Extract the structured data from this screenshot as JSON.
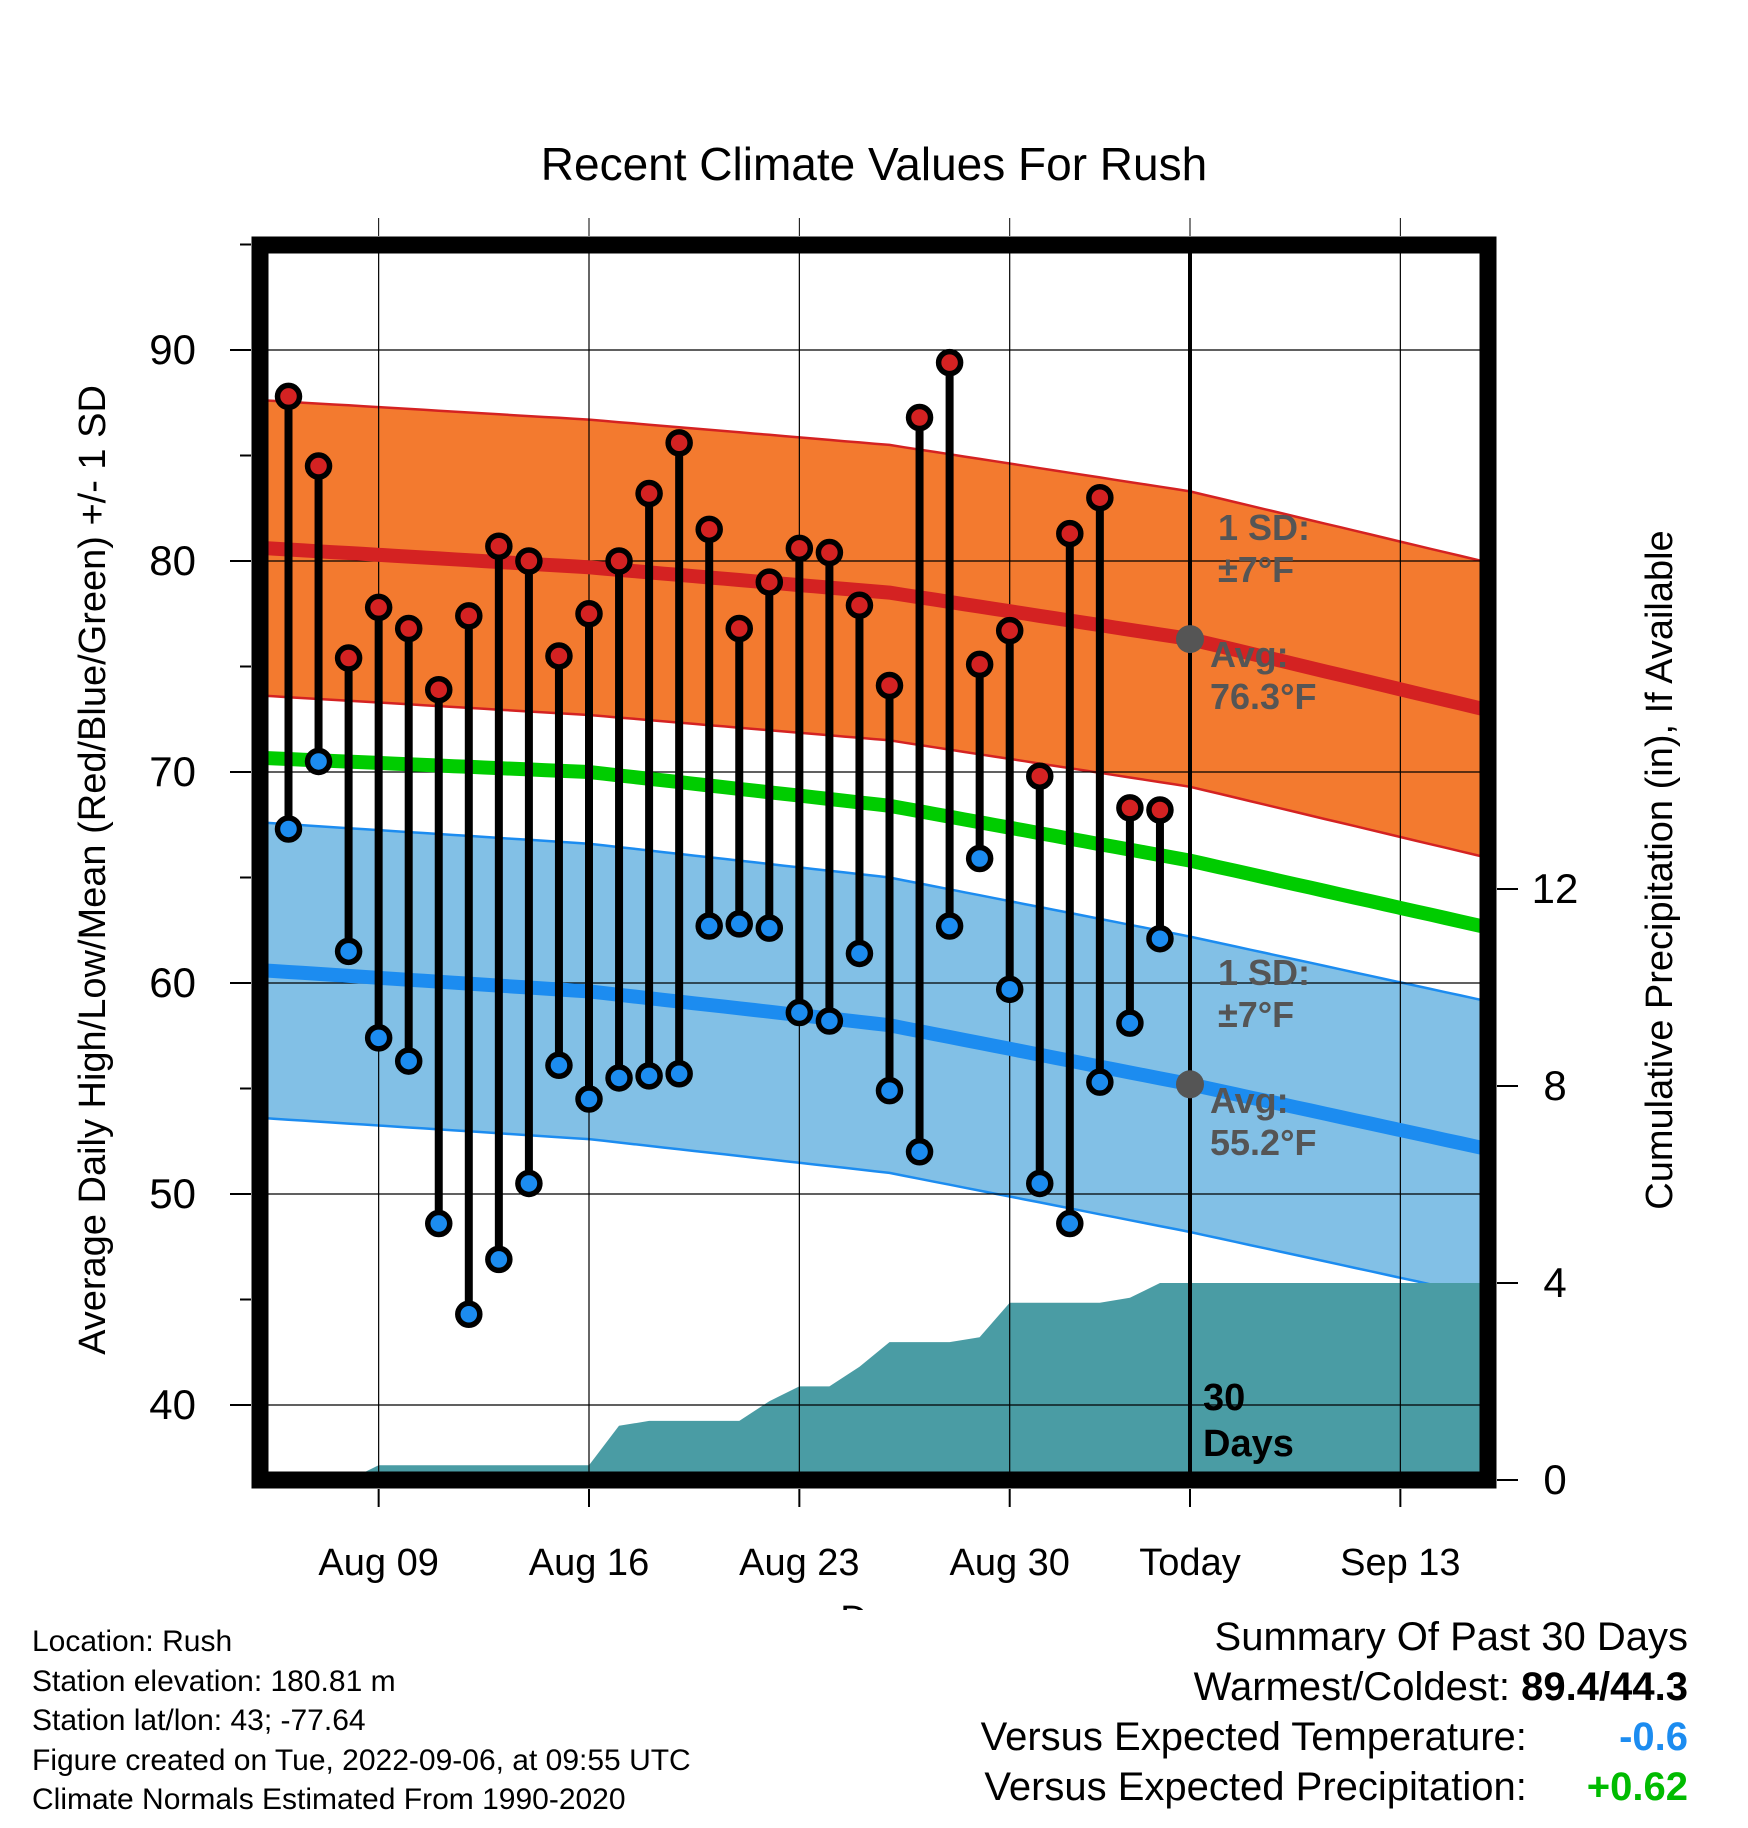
{
  "chart_data": {
    "type": "line",
    "title": "Recent Climate Values For Rush",
    "xlabel": "Day",
    "ylabel": "Average Daily High/Low/Mean (Red/Blue/Green) +/- 1 SD",
    "y2label": "Cumulative Precipitation (in), If Available",
    "ylim": [
      36.5,
      95.5
    ],
    "y2lim": [
      0,
      20
    ],
    "y_ticks": [
      40,
      50,
      60,
      70,
      80,
      90
    ],
    "y2_ticks": [
      0,
      4,
      8,
      12
    ],
    "x_tick_labels": [
      "Aug 09",
      "Aug 16",
      "Aug 23",
      "Aug 30",
      "Today",
      "Sep 13"
    ],
    "x_tick_days": [
      -27,
      -20,
      -13,
      -6,
      0,
      7
    ],
    "today_label": "30 Days",
    "grid": true,
    "daily": {
      "days": [
        -30,
        -29,
        -28,
        -27,
        -26,
        -25,
        -24,
        -23,
        -22,
        -21,
        -20,
        -19,
        -18,
        -17,
        -16,
        -15,
        -14,
        -13,
        -12,
        -11,
        -10,
        -9,
        -8,
        -7,
        -6,
        -5,
        -4,
        -3,
        -2,
        -1
      ],
      "highs": [
        87.8,
        84.5,
        75.4,
        77.8,
        76.8,
        73.9,
        77.4,
        80.7,
        80.0,
        75.5,
        77.5,
        80.0,
        83.2,
        85.6,
        81.5,
        76.8,
        79.0,
        80.6,
        80.4,
        77.9,
        74.1,
        86.8,
        89.4,
        75.1,
        76.7,
        69.8,
        81.3,
        83.0,
        68.3,
        68.2
      ],
      "lows": [
        67.3,
        70.5,
        61.5,
        57.4,
        56.3,
        48.6,
        44.3,
        46.9,
        50.5,
        56.1,
        54.5,
        55.5,
        55.6,
        55.7,
        62.7,
        62.8,
        62.6,
        58.6,
        58.2,
        61.4,
        54.9,
        52.0,
        62.7,
        65.9,
        59.7,
        50.5,
        48.6,
        55.3,
        58.1,
        62.1
      ]
    },
    "normals": {
      "days": [
        -33,
        -20,
        -10,
        0,
        10
      ],
      "high_avg": [
        80.8,
        79.7,
        78.5,
        76.3,
        72.9
      ],
      "low_avg": [
        60.8,
        59.6,
        58.0,
        55.2,
        52.1
      ],
      "mean": [
        70.8,
        70.0,
        68.4,
        65.8,
        62.6
      ],
      "sd_high": 7,
      "sd_low": 7
    },
    "precip": {
      "days": [
        -33,
        -31,
        -28,
        -27,
        -20,
        -19,
        -18,
        -15,
        -14,
        -13,
        -12,
        -11,
        -10,
        -9,
        -8,
        -7,
        -6,
        -5,
        -4,
        -3,
        -2,
        -1,
        0,
        10
      ],
      "cumulative": [
        0.0,
        0.0,
        0.0,
        0.3,
        0.3,
        1.1,
        1.2,
        1.2,
        1.6,
        1.9,
        1.9,
        2.3,
        2.8,
        2.8,
        2.8,
        2.9,
        3.6,
        3.6,
        3.6,
        3.6,
        3.7,
        4.0,
        4.0,
        4.0
      ]
    },
    "annotations": {
      "high_sd": [
        "1 SD:",
        "±7°F"
      ],
      "high_avg": [
        "Avg:",
        "76.3°F"
      ],
      "low_sd": [
        "1 SD:",
        "±7°F"
      ],
      "low_avg": [
        "Avg:",
        "55.2°F"
      ]
    },
    "colors": {
      "high_band": "#f37a2f",
      "high_line": "#d42222",
      "low_band": "#82c0e6",
      "low_line": "#1c8cf0",
      "mean_line": "#00cc00",
      "precip": "#4a9ca4",
      "high_dot": "#d42222",
      "low_dot": "#1c8cf0",
      "marker": "#555555"
    }
  },
  "footer": {
    "location": "Location: Rush",
    "elevation": "Station elevation: 180.81 m",
    "latlon": "Station lat/lon: 43; -77.64",
    "created": "Figure created on Tue, 2022-09-06, at 09:55 UTC",
    "normals": "Climate Normals Estimated From 1990-2020"
  },
  "summary": {
    "title": "Summary Of Past 30 Days",
    "warm_cold_label": "Warmest/Coldest:",
    "warm_cold_value": "89.4/44.3",
    "temp_label": "Versus Expected Temperature:",
    "temp_value": "-0.6",
    "temp_color": "#1c8cf0",
    "precip_label": "Versus Expected Precipitation:",
    "precip_value": "+0.62",
    "precip_color": "#00bb00"
  }
}
